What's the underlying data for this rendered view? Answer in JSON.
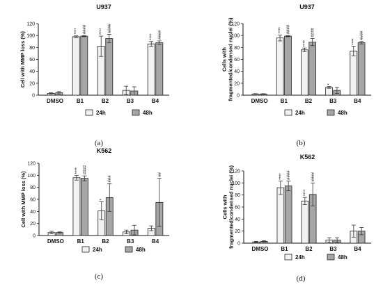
{
  "chart_data": [
    {
      "type": "bar",
      "panel_label": "(a)",
      "title": "U937",
      "ylabel": "Cell with MMP loss (%)",
      "ylim": [
        0,
        120
      ],
      "yticks": [
        0,
        20,
        40,
        60,
        80,
        100,
        120
      ],
      "categories": [
        "DMSO",
        "B1",
        "B2",
        "B3",
        "B4"
      ],
      "series": [
        {
          "name": "24h",
          "color": "#f2f2f2",
          "values": [
            3,
            98,
            82,
            8,
            86
          ],
          "errors": [
            1,
            1.5,
            17,
            7,
            4
          ],
          "sig": [
            "",
            "****",
            "****",
            "",
            "****"
          ]
        },
        {
          "name": "48h",
          "color": "#a6a6a6",
          "values": [
            4,
            99,
            95,
            7,
            88
          ],
          "errors": [
            2,
            1,
            7,
            7,
            3
          ],
          "sig": [
            "",
            "####",
            "####",
            "",
            "####"
          ]
        }
      ],
      "legend_position": "bottom"
    },
    {
      "type": "bar",
      "panel_label": "(b)",
      "title": "U937",
      "ylabel": [
        "Cells with",
        "fragmented/condensed nuclei (%)"
      ],
      "ylim": [
        0,
        120
      ],
      "yticks": [
        0,
        20,
        40,
        60,
        80,
        100,
        120
      ],
      "categories": [
        "DMSO",
        "B1",
        "B2",
        "B3",
        "B4"
      ],
      "series": [
        {
          "name": "24h",
          "color": "#f2f2f2",
          "values": [
            2,
            96,
            76,
            13,
            74
          ],
          "errors": [
            0.5,
            5,
            3,
            1.5,
            8
          ],
          "sig": [
            "",
            "****",
            "****",
            "*",
            "****"
          ]
        },
        {
          "name": "48h",
          "color": "#a6a6a6",
          "values": [
            2,
            99,
            89,
            8,
            88
          ],
          "errors": [
            0.5,
            1,
            6,
            5,
            2
          ],
          "sig": [
            "",
            "####",
            "####",
            "",
            "####"
          ]
        }
      ],
      "legend_position": "bottom"
    },
    {
      "type": "bar",
      "panel_label": "(c)",
      "title": "K562",
      "ylabel": "Cell with MMP loss (%)",
      "ylim": [
        0,
        120
      ],
      "yticks": [
        0,
        20,
        40,
        60,
        80,
        100,
        120
      ],
      "categories": [
        "DMSO",
        "B1",
        "B2",
        "B3",
        "B4"
      ],
      "series": [
        {
          "name": "24h",
          "color": "#f2f2f2",
          "values": [
            5,
            96,
            41,
            6,
            12
          ],
          "errors": [
            2,
            4,
            15,
            3,
            4
          ],
          "sig": [
            "",
            "****",
            "*",
            "",
            ""
          ]
        },
        {
          "name": "48h",
          "color": "#a6a6a6",
          "values": [
            5,
            95,
            63,
            9,
            55
          ],
          "errors": [
            1,
            4,
            23,
            8,
            40
          ],
          "sig": [
            "",
            "####",
            "###",
            "",
            "##"
          ]
        }
      ],
      "legend_position": "bottom"
    },
    {
      "type": "bar",
      "panel_label": "(d)",
      "title": "K562",
      "ylabel": [
        "Cells with",
        "fragmented/condensed nuclei (%)"
      ],
      "ylim": [
        0,
        120
      ],
      "yticks": [
        0,
        20,
        40,
        60,
        80,
        100,
        120
      ],
      "categories": [
        "DMSO",
        "B1",
        "B2",
        "B3",
        "B4"
      ],
      "series": [
        {
          "name": "24h",
          "color": "#f2f2f2",
          "values": [
            2,
            92,
            70,
            5,
            20
          ],
          "errors": [
            1,
            11,
            6,
            4,
            10
          ],
          "sig": [
            "",
            "****",
            "****",
            "",
            ""
          ]
        },
        {
          "name": "48h",
          "color": "#a6a6a6",
          "values": [
            3,
            95,
            81,
            5,
            20
          ],
          "errors": [
            1,
            8,
            19,
            4,
            6
          ],
          "sig": [
            "",
            "####",
            "####",
            "",
            ""
          ]
        }
      ],
      "legend_position": "bottom"
    }
  ]
}
